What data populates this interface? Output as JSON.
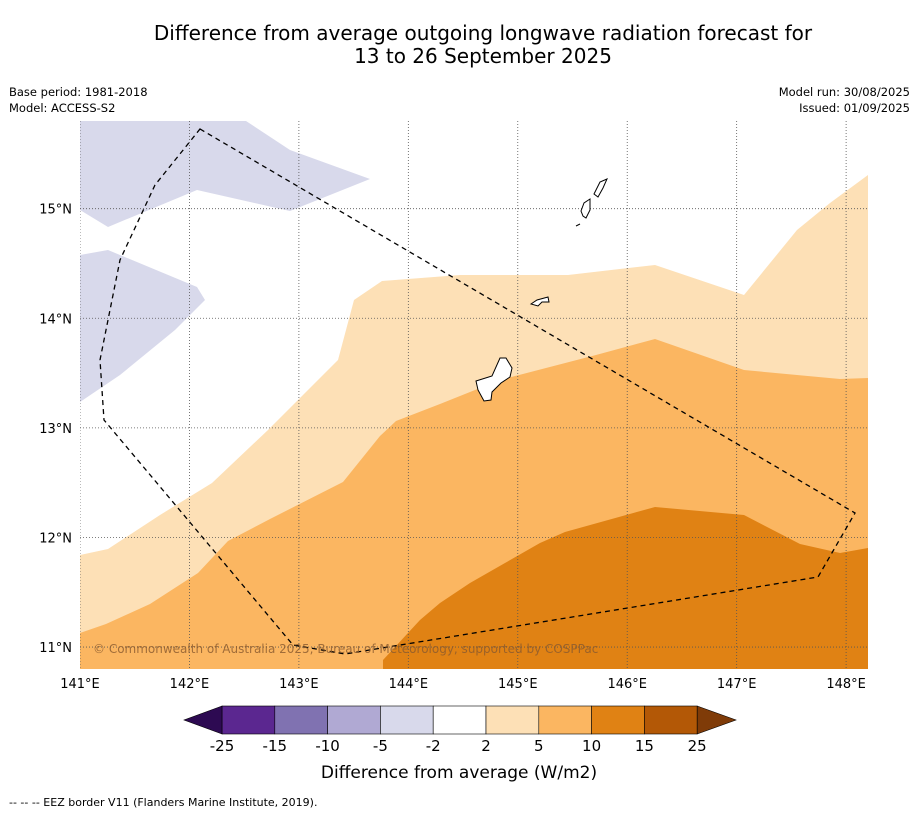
{
  "title": {
    "line1": "Difference from average outgoing longwave radiation forecast for",
    "line2": "13 to 26 September 2025"
  },
  "meta_left": {
    "base_period": "Base period: 1981-2018",
    "model": "Model: ACCESS-S2"
  },
  "meta_right": {
    "model_run": "Model run: 30/08/2025",
    "issued": "Issued: 01/09/2025"
  },
  "map": {
    "lon_range": [
      141.0,
      148.2
    ],
    "lat_range": [
      10.8,
      15.8
    ],
    "lon_ticks": [
      "141°E",
      "142°E",
      "143°E",
      "144°E",
      "145°E",
      "146°E",
      "147°E",
      "148°E"
    ],
    "lat_ticks": [
      "11°N",
      "12°N",
      "13°N",
      "14°N",
      "15°N"
    ],
    "gridlines": true,
    "copyright": "© Commonwealth of Australia 2025, Bureau of Meteorology, supported by COSPPac"
  },
  "colorbar": {
    "label": "Difference from average (W/m2)",
    "ticks": [
      "-25",
      "-15",
      "-10",
      "-5",
      "-2",
      "2",
      "5",
      "10",
      "15",
      "25"
    ],
    "colors": {
      "lt_-25": "#2d0a52",
      "-25_-15": "#5b2790",
      "-15_-10": "#8072b1",
      "-10_-5": "#b0a9d3",
      "-5_-2": "#d8d9eb",
      "-2_2": "#ffffff",
      "2_5": "#fde0b6",
      "5_10": "#fbb661",
      "10_15": "#e08214",
      "15_25": "#b35806",
      "gt_25": "#7f3b08"
    }
  },
  "footnote": "-- -- -- EEZ border V11 (Flanders Marine Institute, 2019)."
}
